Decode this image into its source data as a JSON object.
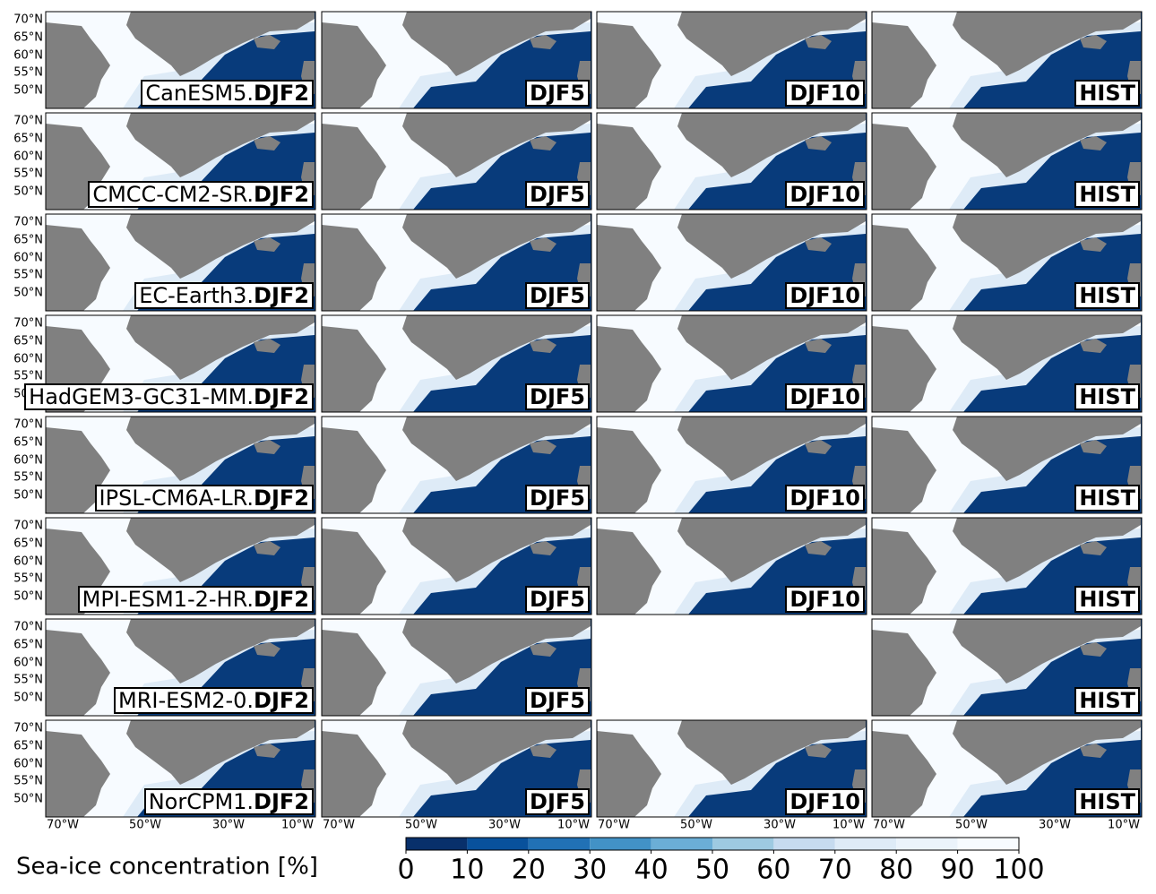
{
  "rows": [
    {
      "model": "CanESM5.",
      "panels": [
        "DJF2",
        "DJF5",
        "DJF10",
        "HIST"
      ]
    },
    {
      "model": "CMCC-CM2-SR.",
      "panels": [
        "DJF2",
        "DJF5",
        "DJF10",
        "HIST"
      ]
    },
    {
      "model": "EC-Earth3.",
      "panels": [
        "DJF2",
        "DJF5",
        "DJF10",
        "HIST"
      ]
    },
    {
      "model": "HadGEM3-GC31-MM.",
      "panels": [
        "DJF2",
        "DJF5",
        "DJF10",
        "HIST"
      ]
    },
    {
      "model": "IPSL-CM6A-LR.",
      "panels": [
        "DJF2",
        "DJF5",
        "DJF10",
        "HIST"
      ]
    },
    {
      "model": "MPI-ESM1-2-HR.",
      "panels": [
        "DJF2",
        "DJF5",
        "DJF10",
        "HIST"
      ]
    },
    {
      "model": "MRI-ESM2-0.",
      "panels": [
        "DJF2",
        "DJF5",
        null,
        "HIST"
      ]
    },
    {
      "model": "NorCPM1.",
      "panels": [
        "DJF2",
        "DJF5",
        "DJF10",
        "HIST"
      ]
    }
  ],
  "lat_labels": [
    "70°N",
    "65°N",
    "60°N",
    "55°N",
    "50°N"
  ],
  "lon_labels": [
    "70°W",
    "50°W",
    "30°W",
    "10°W"
  ],
  "colorbar": {
    "label": "Sea-ice concentration [%]",
    "lim": [
      0,
      100
    ],
    "ticks": [
      0,
      10,
      20,
      30,
      40,
      50,
      60,
      70,
      80,
      90,
      100
    ],
    "colors": [
      "#08306b",
      "#08519c",
      "#2171b5",
      "#4292c6",
      "#6baed6",
      "#9ecae1",
      "#c6dbef",
      "#deebf7",
      "#ebf3fb",
      "#f7fbff"
    ]
  }
}
